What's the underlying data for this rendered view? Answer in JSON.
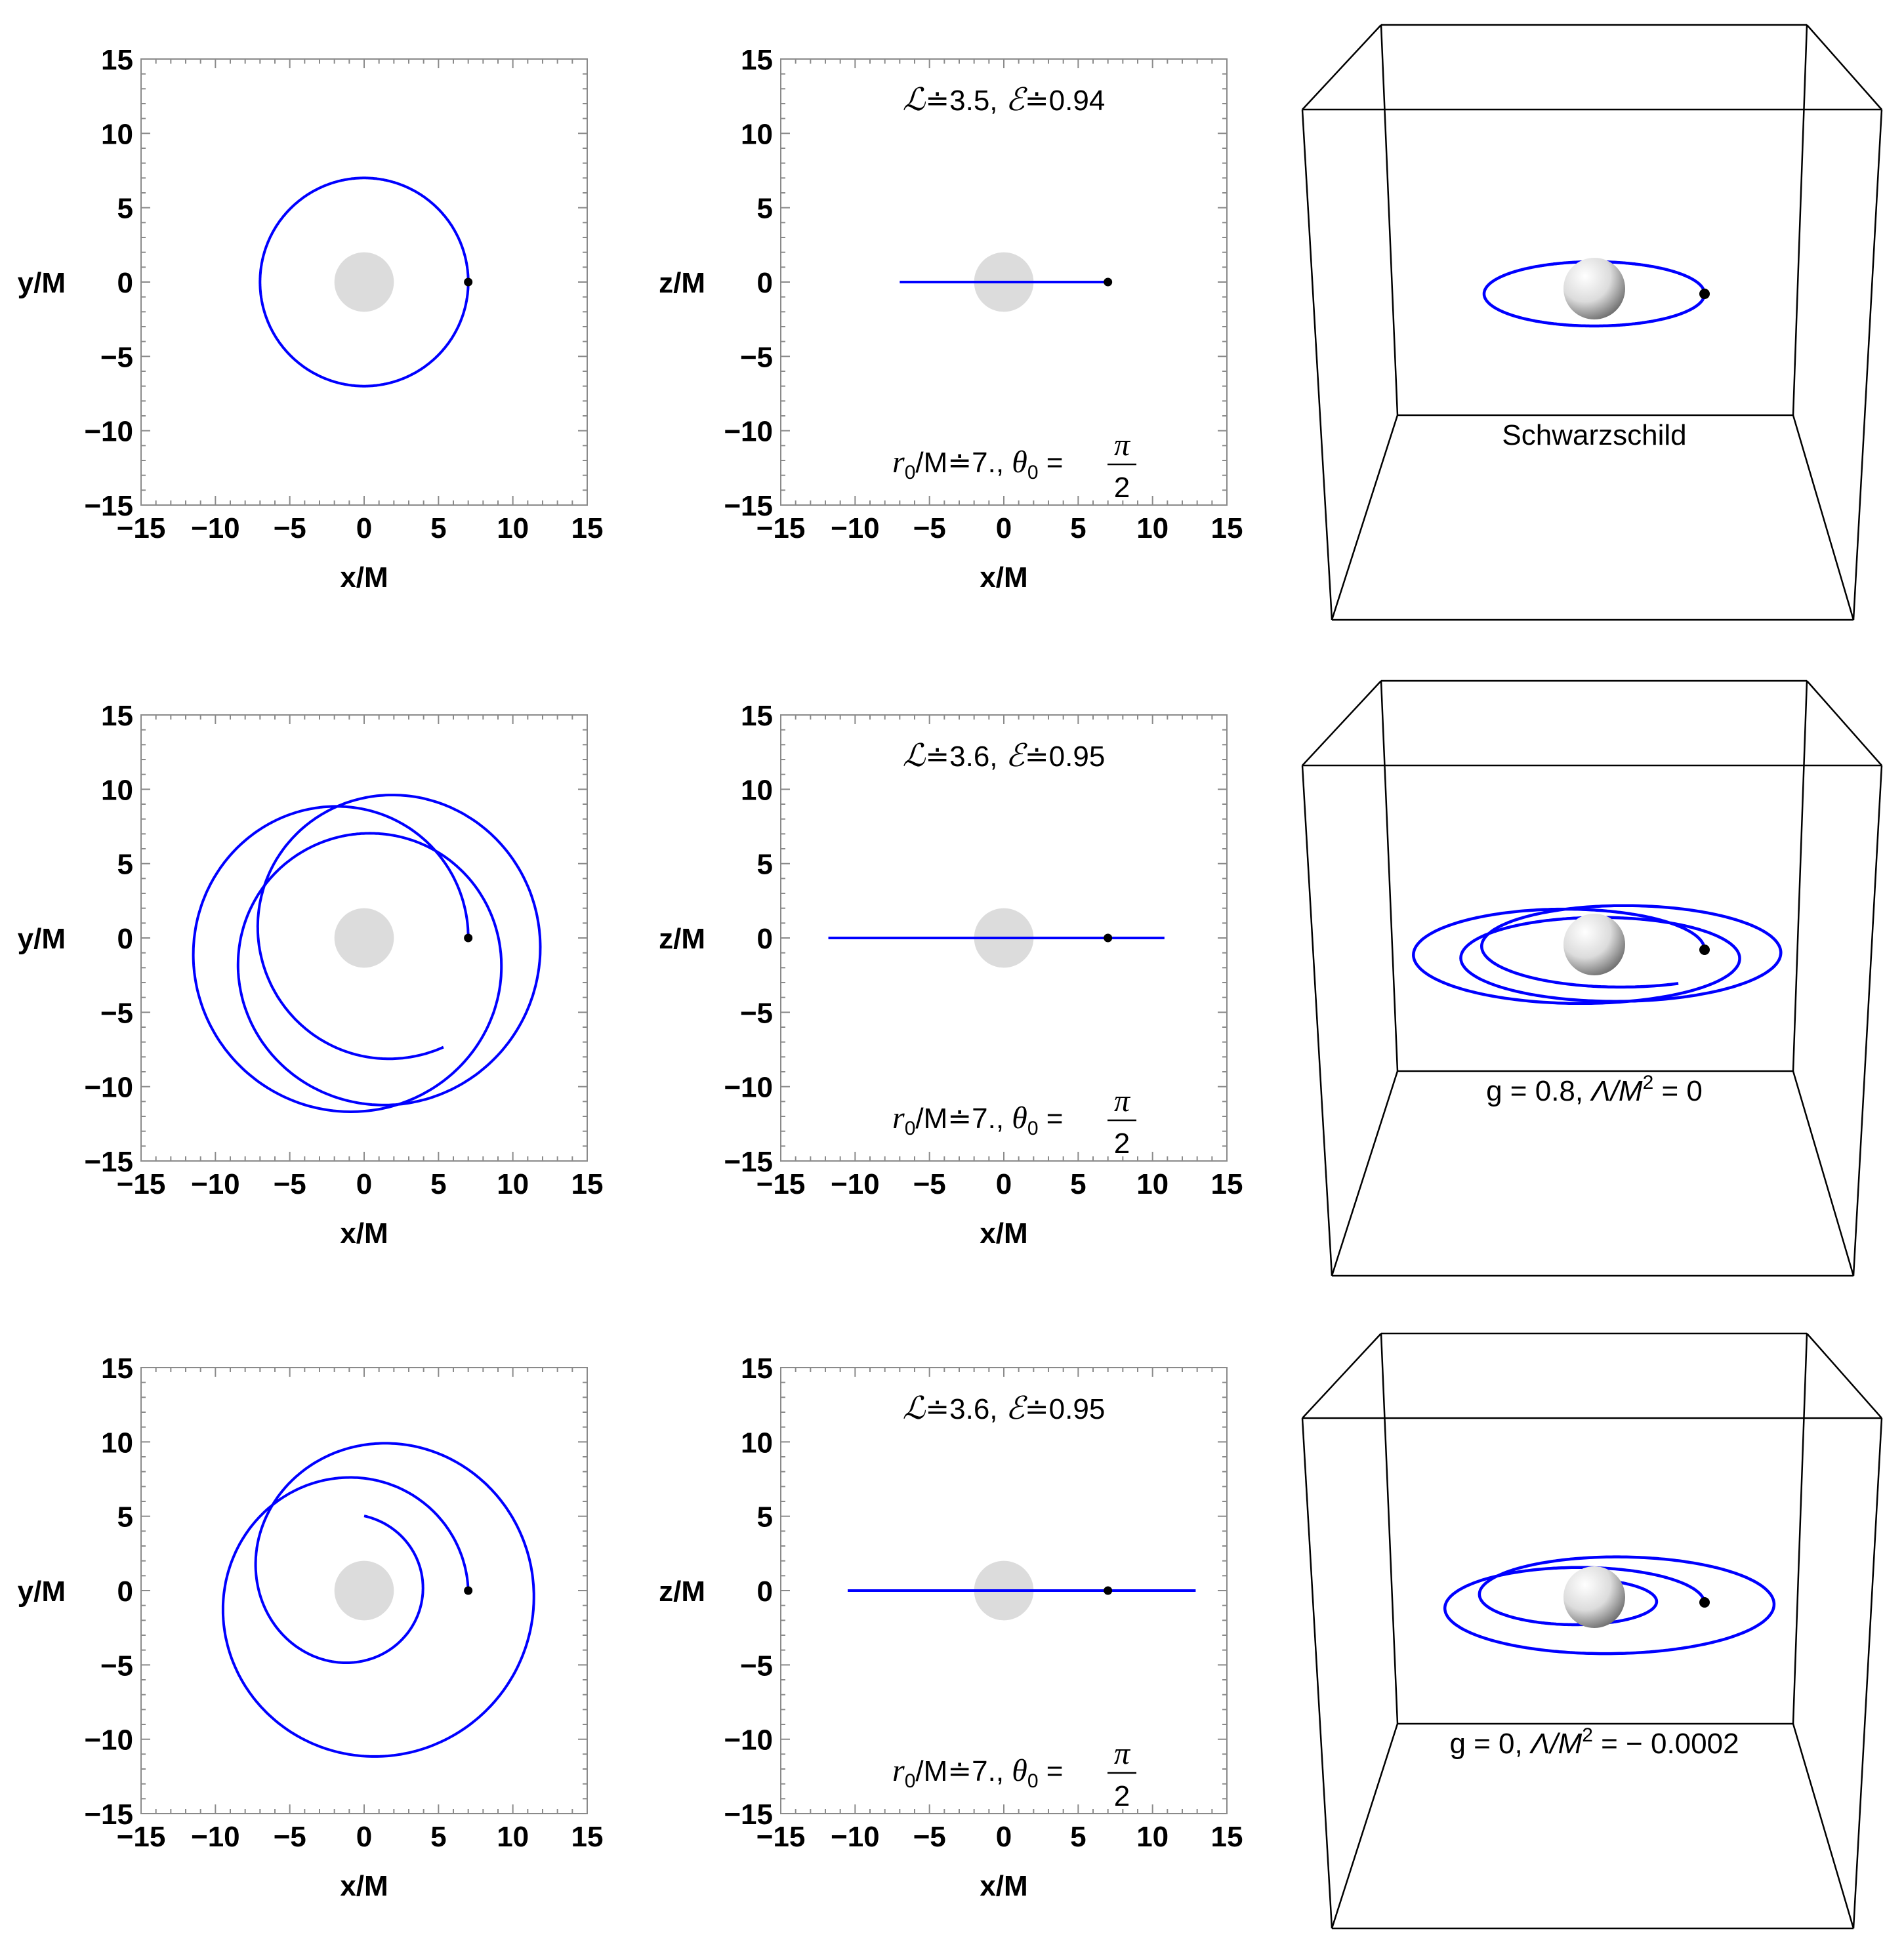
{
  "chart_data": [
    {
      "type": "line",
      "row": 1,
      "panel": "xy",
      "xlabel": "x/M",
      "ylabel": "y/M",
      "xlim": [
        -15,
        15
      ],
      "ylim": [
        -15,
        15
      ],
      "xticks": [
        "−15",
        "−10",
        "−5",
        "0",
        "5",
        "10",
        "15"
      ],
      "yticks": [
        "15",
        "10",
        "5",
        "0",
        "−5",
        "−10",
        "−15"
      ],
      "horizon_radius": 2,
      "start_point": [
        7,
        0
      ],
      "orbit": {
        "turns": 1.0,
        "phase_rate": 1.0,
        "r_mean": 7.0,
        "r_amp": 0.0,
        "r_drift": 0.0,
        "x0": 0.0,
        "y0": 0.0
      },
      "color": "#0000ff"
    },
    {
      "type": "line",
      "row": 1,
      "panel": "xz",
      "xlabel": "x/M",
      "ylabel": "z/M",
      "xlim": [
        -15,
        15
      ],
      "ylim": [
        -15,
        15
      ],
      "xticks": [
        "−15",
        "−10",
        "−5",
        "0",
        "5",
        "10",
        "15"
      ],
      "yticks": [
        "15",
        "10",
        "5",
        "0",
        "−5",
        "−10",
        "−15"
      ],
      "horizon_radius": 2,
      "start_point": [
        7,
        0
      ],
      "segment": [
        -7,
        7
      ],
      "annotation_top": {
        "L_sym": "ℒ",
        "L_val": "≐3.5, ",
        "E_sym": "ℰ",
        "E_val": "≐0.94"
      },
      "annotation_bottom": {
        "r_label": "r",
        "r_sub": "0",
        "r_rest": "/M≐7., ",
        "theta": "θ",
        "theta_sub": "0",
        "eq": " = ",
        "num": "π",
        "den": "2"
      },
      "color": "#0000ff"
    },
    {
      "type": "line",
      "row": 1,
      "panel": "3d",
      "caption": "Schwarzschild",
      "orbit": {
        "turns": 1.0,
        "phase_rate": 1.0,
        "r_mean": 7.0,
        "r_amp": 0.0,
        "r_drift": 0.0,
        "x0": 0.0,
        "y0": 0.0
      },
      "color": "#0000ff"
    },
    {
      "type": "line",
      "row": 2,
      "panel": "xy",
      "xlabel": "x/M",
      "ylabel": "y/M",
      "xlim": [
        -15,
        15
      ],
      "ylim": [
        -15,
        15
      ],
      "xticks": [
        "−15",
        "−10",
        "−5",
        "0",
        "5",
        "10",
        "15"
      ],
      "yticks": [
        "15",
        "10",
        "5",
        "0",
        "−5",
        "−10",
        "−15"
      ],
      "horizon_radius": 2,
      "start_point": [
        7,
        0
      ],
      "orbit": {
        "turns": 2.85,
        "phase_rate": 0.78,
        "r_mean": 9.5,
        "r_amp": -2.5,
        "r_drift": 0.0,
        "x0": 0.0,
        "y0": 0.0
      },
      "color": "#0000ff"
    },
    {
      "type": "line",
      "row": 2,
      "panel": "xz",
      "xlabel": "x/M",
      "ylabel": "z/M",
      "xlim": [
        -15,
        15
      ],
      "ylim": [
        -15,
        15
      ],
      "xticks": [
        "−15",
        "−10",
        "−5",
        "0",
        "5",
        "10",
        "15"
      ],
      "yticks": [
        "15",
        "10",
        "5",
        "0",
        "−5",
        "−10",
        "−15"
      ],
      "horizon_radius": 2,
      "start_point": [
        7,
        0
      ],
      "segment": [
        -11.8,
        10.8
      ],
      "annotation_top": {
        "L_sym": "ℒ",
        "L_val": "≐3.6, ",
        "E_sym": "ℰ",
        "E_val": "≐0.95"
      },
      "annotation_bottom": {
        "r_label": "r",
        "r_sub": "0",
        "r_rest": "/M≐7., ",
        "theta": "θ",
        "theta_sub": "0",
        "eq": " = ",
        "num": "π",
        "den": "2"
      },
      "color": "#0000ff"
    },
    {
      "type": "line",
      "row": 2,
      "panel": "3d",
      "caption_parts": [
        "g = 0.8, ",
        "Λ/",
        "M",
        "2",
        " = 0"
      ],
      "orbit": {
        "turns": 2.85,
        "phase_rate": 0.78,
        "r_mean": 9.5,
        "r_amp": -2.5,
        "r_drift": 0.0,
        "x0": 0.0,
        "y0": 0.0
      },
      "color": "#0000ff"
    },
    {
      "type": "line",
      "row": 3,
      "panel": "xy",
      "xlabel": "x/M",
      "ylabel": "y/M",
      "xlim": [
        -15,
        15
      ],
      "ylim": [
        -15,
        15
      ],
      "xticks": [
        "−15",
        "−10",
        "−5",
        "0",
        "5",
        "10",
        "15"
      ],
      "yticks": [
        "15",
        "10",
        "5",
        "0",
        "−5",
        "−10",
        "−15"
      ],
      "horizon_radius": 2,
      "start_point": [
        7,
        0
      ],
      "orbit": {
        "turns": 2.25,
        "phase_rate": 0.52,
        "r_mean": 10.0,
        "r_amp": -3.0,
        "r_drift": -0.25,
        "x0": 0.0,
        "y0": 0.0
      },
      "color": "#0000ff"
    },
    {
      "type": "line",
      "row": 3,
      "panel": "xz",
      "xlabel": "x/M",
      "ylabel": "z/M",
      "xlim": [
        -15,
        15
      ],
      "ylim": [
        -15,
        15
      ],
      "xticks": [
        "−15",
        "−10",
        "−5",
        "0",
        "5",
        "10",
        "15"
      ],
      "yticks": [
        "15",
        "10",
        "5",
        "0",
        "−5",
        "−10",
        "−15"
      ],
      "horizon_radius": 2,
      "start_point": [
        7,
        0
      ],
      "segment": [
        -10.5,
        12.9
      ],
      "annotation_top": {
        "L_sym": "ℒ",
        "L_val": "≐3.6, ",
        "E_sym": "ℰ",
        "E_val": "≐0.95"
      },
      "annotation_bottom": {
        "r_label": "r",
        "r_sub": "0",
        "r_rest": "/M≐7., ",
        "theta": "θ",
        "theta_sub": "0",
        "eq": " = ",
        "num": "π",
        "den": "2"
      },
      "color": "#0000ff"
    },
    {
      "type": "line",
      "row": 3,
      "panel": "3d",
      "caption_parts": [
        "g = 0, ",
        "Λ/",
        "M",
        "2",
        " = − 0.0002"
      ],
      "orbit": {
        "turns": 2.25,
        "phase_rate": 0.52,
        "r_mean": 10.0,
        "r_amp": -3.0,
        "r_drift": -0.25,
        "x0": 0.0,
        "y0": 0.0
      },
      "color": "#0000ff"
    }
  ]
}
